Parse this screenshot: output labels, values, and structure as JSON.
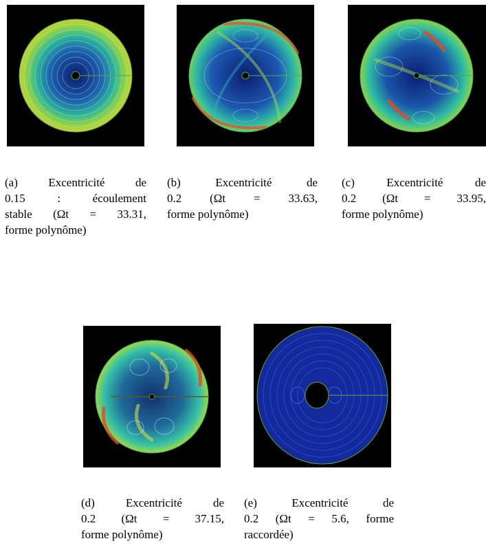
{
  "figure": {
    "panels": [
      {
        "id": "a",
        "caption_lines": [
          "(a) Excentricité de",
          "0.15 : écoulement",
          "stable (Ωt = 33.31,",
          "forme polynôme)"
        ]
      },
      {
        "id": "b",
        "caption_lines": [
          "(b) Excentricité de",
          "0.2 (Ωt = 33.63,",
          "forme polynôme)"
        ]
      },
      {
        "id": "c",
        "caption_lines": [
          "(c) Excentricité de",
          "0.2 (Ωt = 33.95,",
          "forme polynôme)"
        ]
      },
      {
        "id": "d",
        "caption_lines": [
          "(d) Excentricité de",
          "0.2 (Ωt = 37.15,",
          "forme polynôme)"
        ]
      },
      {
        "id": "e",
        "caption_lines": [
          "(e) Excentricité de",
          "0.2 (Ωt = 5.6, forme",
          "raccordée)"
        ]
      }
    ]
  }
}
